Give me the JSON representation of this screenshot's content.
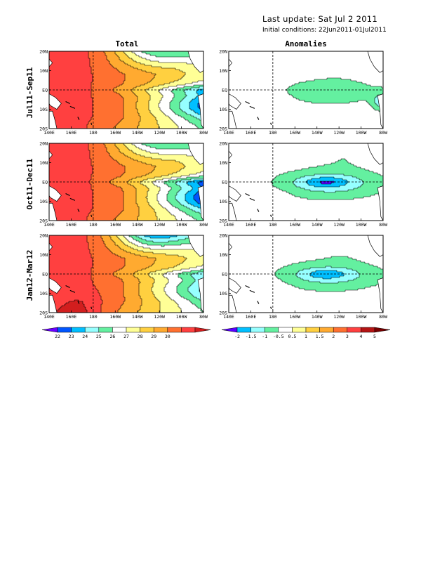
{
  "header": {
    "last_update": "Last update: Sat Jul 2 2011",
    "initial_conditions": "Initial conditions: 22Jun2011-01Jul2011"
  },
  "columns": [
    "Total",
    "Anomalies"
  ],
  "rows": [
    "Jul11-Sep11",
    "Oct11-Dec11",
    "Jan12-Mar12"
  ],
  "axes": {
    "lon_ticks": [
      "140E",
      "160E",
      "180",
      "160W",
      "140W",
      "120W",
      "100W",
      "80W"
    ],
    "lat_ticks": [
      "20N",
      "10N",
      "EQ",
      "10S",
      "20S"
    ]
  },
  "chart_data": [
    {
      "type": "heatmap",
      "name": "total",
      "xlim": [
        140,
        280
      ],
      "ylim": [
        -20,
        20
      ],
      "colorbar_labels": [
        "22",
        "23",
        "24",
        "25",
        "26",
        "27",
        "28",
        "29",
        "30"
      ],
      "levels": [
        21,
        22,
        23,
        24,
        25,
        26,
        27,
        28,
        29,
        30,
        31
      ],
      "colors": [
        "#6a00ff",
        "#0055ff",
        "#00bfff",
        "#96ffff",
        "#64f0a0",
        "#ffffff",
        "#ffff96",
        "#ffd040",
        "#ffaa30",
        "#ff7030",
        "#ff4040",
        "#d21e1e"
      ]
    },
    {
      "type": "heatmap",
      "name": "anomalies",
      "xlim": [
        140,
        280
      ],
      "ylim": [
        -20,
        20
      ],
      "colorbar_labels": [
        "-2",
        "-1.5",
        "-1",
        "-0.5",
        "0.5",
        "1",
        "1.5",
        "2",
        "3",
        "4",
        "5"
      ],
      "levels": [
        -2,
        -1.5,
        -1,
        -0.5,
        0.5,
        1,
        1.5,
        2,
        3,
        4,
        5
      ],
      "colors": [
        "#5a00ff",
        "#00bfff",
        "#96ffff",
        "#64f0a0",
        "#ffffff",
        "#ffff96",
        "#ffd040",
        "#ffaa30",
        "#ff7030",
        "#ff4040",
        "#b41414",
        "#780000"
      ]
    }
  ]
}
